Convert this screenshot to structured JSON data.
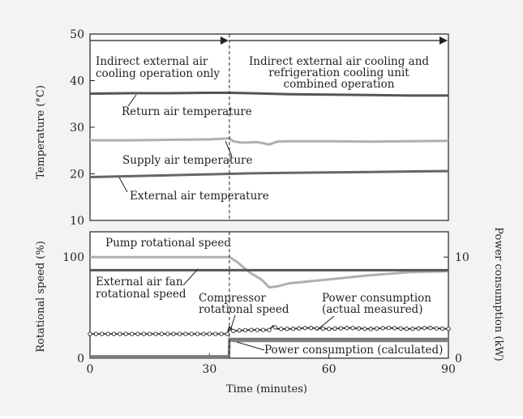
{
  "chart_data": [
    {
      "type": "line",
      "title": "",
      "xlabel": "",
      "ylabel": "Temperature (°C)",
      "xlim": [
        0,
        90
      ],
      "ylim": [
        10,
        50
      ],
      "yticks": [
        10,
        20,
        30,
        40,
        50
      ],
      "grid": false,
      "divider_x": 35,
      "phases": [
        {
          "label_lines": [
            "Indirect external air",
            "cooling operation only"
          ]
        },
        {
          "label_lines": [
            "Indirect external air cooling and",
            "refrigeration cooling unit",
            "combined operation"
          ]
        }
      ],
      "series": [
        {
          "name": "Return air temperature",
          "color": "#555555",
          "x": [
            0,
            10,
            20,
            30,
            35,
            40,
            50,
            60,
            70,
            80,
            90
          ],
          "y": [
            37.2,
            37.3,
            37.3,
            37.4,
            37.4,
            37.3,
            37.1,
            37.0,
            36.9,
            36.8,
            36.8
          ]
        },
        {
          "name": "Supply air temperature",
          "color": "#b0b0b0",
          "x": [
            0,
            10,
            20,
            30,
            35,
            36,
            38,
            42,
            45,
            47,
            50,
            60,
            70,
            80,
            90
          ],
          "y": [
            27.2,
            27.2,
            27.3,
            27.4,
            27.6,
            27.0,
            26.7,
            26.8,
            26.3,
            26.9,
            27.0,
            27.0,
            26.9,
            27.0,
            27.1
          ]
        },
        {
          "name": "External air temperature",
          "color": "#666666",
          "x": [
            0,
            10,
            20,
            30,
            35,
            40,
            50,
            60,
            70,
            80,
            90
          ],
          "y": [
            19.3,
            19.5,
            19.7,
            19.9,
            20.0,
            20.1,
            20.2,
            20.3,
            20.4,
            20.5,
            20.6
          ]
        }
      ]
    },
    {
      "type": "line",
      "title": "",
      "xlabel": "Time (minutes)",
      "ylabel": "Rotational speed (%)",
      "ylabel_right": "Power consumption (kW)",
      "xlim": [
        0,
        90
      ],
      "xticks": [
        0,
        30,
        60,
        90
      ],
      "ylim": [
        0,
        125
      ],
      "yticks": [
        0,
        100
      ],
      "ylim_right": [
        0,
        12.5
      ],
      "yticks_right": [
        0,
        10
      ],
      "grid": false,
      "divider_x": 35,
      "series": [
        {
          "name": "Pump rotational speed",
          "color": "#b0b0b0",
          "x": [
            0,
            10,
            20,
            30,
            35,
            37,
            40,
            43,
            45,
            47,
            50,
            60,
            70,
            80,
            90
          ],
          "y": [
            100,
            100,
            100,
            100,
            100,
            95,
            85,
            78,
            70,
            71,
            74,
            78,
            82,
            85,
            86
          ]
        },
        {
          "name": "External air fan rotational speed",
          "color": "#555555",
          "x": [
            0,
            30,
            60,
            90
          ],
          "y": [
            87,
            87,
            87,
            87
          ]
        },
        {
          "name": "Compressor rotational speed",
          "color": "#888888",
          "x": [
            0,
            34.9,
            35,
            36,
            90
          ],
          "y": [
            2,
            2,
            18,
            17,
            17
          ]
        },
        {
          "name": "Power consumption (actual measured)",
          "color": "#222222",
          "axis": "right",
          "marker": "circle",
          "x": [
            0,
            10,
            20,
            30,
            34.5,
            35,
            36,
            40,
            45,
            46,
            47,
            50,
            55,
            60,
            65,
            70,
            75,
            80,
            85,
            90
          ],
          "y": [
            2.4,
            2.4,
            2.4,
            2.4,
            2.4,
            3.1,
            2.7,
            2.8,
            2.8,
            3.2,
            2.9,
            2.9,
            3.0,
            2.9,
            3.0,
            2.9,
            3.0,
            2.9,
            3.0,
            2.9
          ]
        },
        {
          "name": "Power consumption (calculated)",
          "color": "#777777",
          "axis": "right",
          "x": [
            0,
            34.9,
            35,
            90
          ],
          "y": [
            0.1,
            0.1,
            1.9,
            1.9
          ]
        }
      ]
    }
  ]
}
